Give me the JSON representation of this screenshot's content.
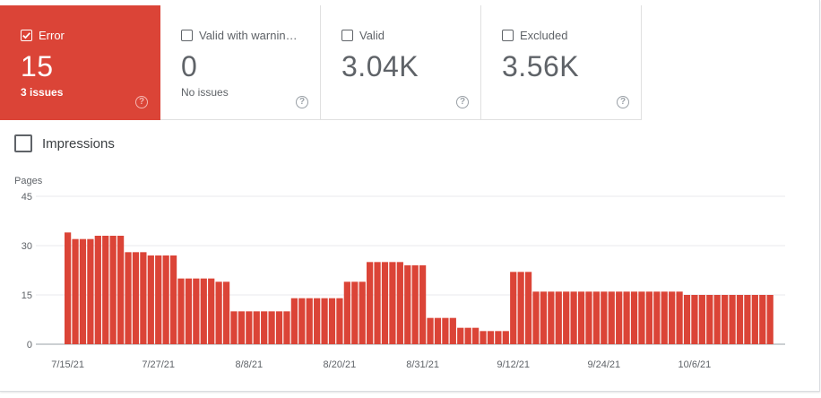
{
  "tiles": [
    {
      "label": "Error",
      "value": "15",
      "sub": "3 issues",
      "checked": true,
      "icon": "help-icon"
    },
    {
      "label": "Valid with warnin…",
      "value": "0",
      "sub": "No issues",
      "checked": false,
      "icon": "help-icon"
    },
    {
      "label": "Valid",
      "value": "3.04K",
      "sub": "",
      "checked": false,
      "icon": "help-icon"
    },
    {
      "label": "Excluded",
      "value": "3.56K",
      "sub": "",
      "checked": false,
      "icon": "help-icon"
    }
  ],
  "help_glyph": "?",
  "impressions": {
    "label": "Impressions",
    "checked": false
  },
  "colors": {
    "accent": "#db4437",
    "grid": "#e8eaed",
    "axis": "#5f6368"
  },
  "chart_data": {
    "type": "bar",
    "ylabel": "Pages",
    "ylim": [
      0,
      45
    ],
    "yticks": [
      0,
      15,
      30,
      45
    ],
    "xticks": [
      "7/15/21",
      "7/27/21",
      "8/8/21",
      "8/20/21",
      "8/31/21",
      "9/12/21",
      "9/24/21",
      "10/6/21"
    ],
    "xtick_positions": [
      0,
      12,
      24,
      36,
      47,
      59,
      71,
      83
    ],
    "series": [
      {
        "color": "#db4437",
        "values": [
          34,
          32,
          32,
          32,
          33,
          33,
          33,
          33,
          28,
          28,
          28,
          27,
          27,
          27,
          27,
          20,
          20,
          20,
          20,
          20,
          19,
          19,
          10,
          10,
          10,
          10,
          10,
          10,
          10,
          10,
          14,
          14,
          14,
          14,
          14,
          14,
          14,
          19,
          19,
          19,
          25,
          25,
          25,
          25,
          25,
          24,
          24,
          24,
          8,
          8,
          8,
          8,
          5,
          5,
          5,
          4,
          4,
          4,
          4,
          22,
          22,
          22,
          16,
          16,
          16,
          16,
          16,
          16,
          16,
          16,
          16,
          16,
          16,
          16,
          16,
          16,
          16,
          16,
          16,
          16,
          16,
          16,
          15,
          15,
          15,
          15,
          15,
          15,
          15,
          15,
          15,
          15,
          15,
          15
        ]
      }
    ]
  }
}
